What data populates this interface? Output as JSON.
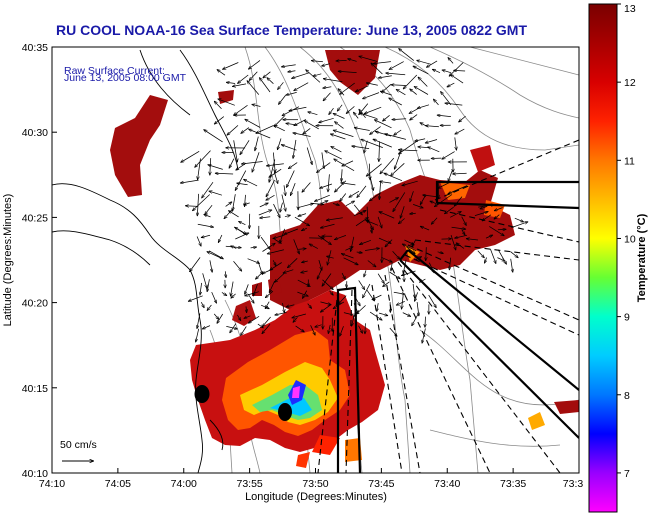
{
  "title": "RU COOL  NOAA-16  Sea Surface Temperature:  June 13, 2005 0822 GMT",
  "annotation": {
    "line1": "Raw Surface Current:",
    "line2": "June 13, 2005 08:00 GMT"
  },
  "scale_label": "50 cm/s",
  "x_axis": {
    "label": "Longitude (Degrees:Minutes)",
    "ticks": [
      "74:10",
      "74:05",
      "74:00",
      "73:55",
      "73:50",
      "73:45",
      "73:40",
      "73:35",
      "73:3"
    ]
  },
  "y_axis": {
    "label": "Latitude (Degrees:Minutes)",
    "ticks": [
      "40:35",
      "40:30",
      "40:25",
      "40:20",
      "40:15",
      "40:10"
    ]
  },
  "colorbar": {
    "label": "Temperature (°C)",
    "ticks": [
      "13",
      "12",
      "11",
      "10",
      "9",
      "8",
      "7"
    ],
    "range": [
      6.5,
      13
    ],
    "colors": [
      "#ff00ff",
      "#9900ff",
      "#0000ff",
      "#0077ff",
      "#00ccff",
      "#00ffcc",
      "#66ff33",
      "#ffff00",
      "#ffbb00",
      "#ff7700",
      "#ff2200",
      "#d80000",
      "#a80000",
      "#7a0000"
    ]
  },
  "colors": {
    "title": "#1a1aa8",
    "annotation": "#1a1aa8",
    "sst_warm": "#a30d0d",
    "coastline": "#000000",
    "bathymetry": "#888888"
  }
}
